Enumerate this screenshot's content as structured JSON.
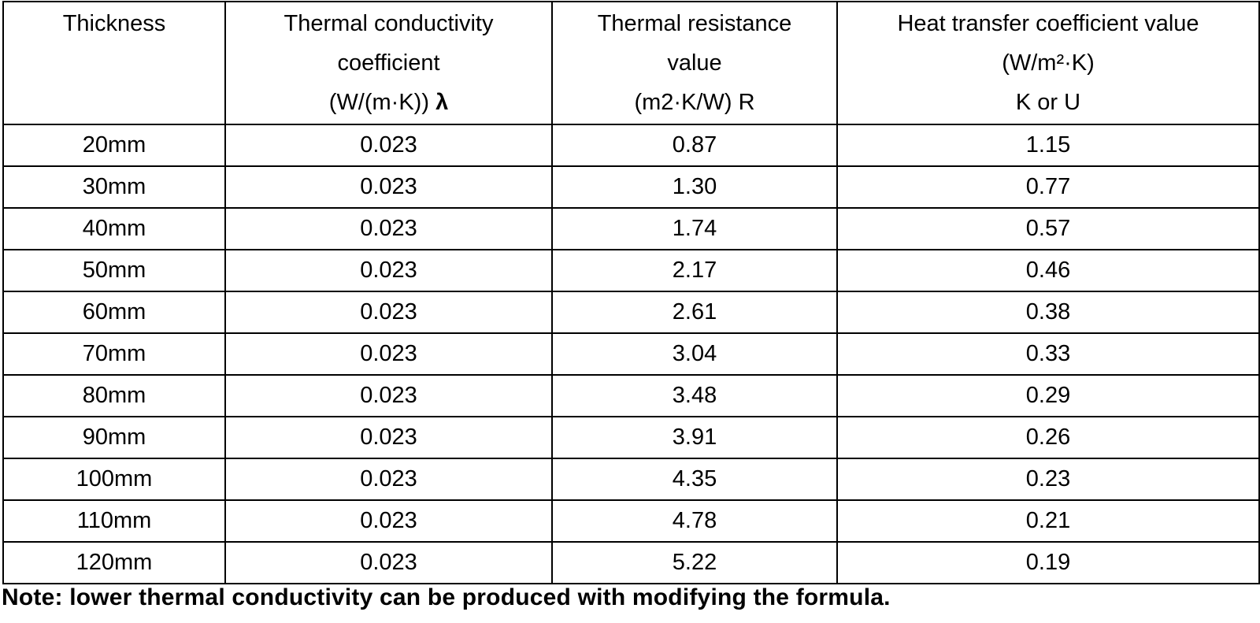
{
  "table": {
    "headers": [
      {
        "lines": [
          "Thickness"
        ]
      },
      {
        "lines": [
          "Thermal conductivity",
          "coefficient",
          "(W/(m·K))"
        ],
        "symbol": "λ"
      },
      {
        "lines": [
          "Thermal resistance",
          "value",
          "(m2·K/W) R"
        ]
      },
      {
        "lines": [
          "Heat transfer coefficient value",
          "(W/m²·K)",
          "K or U"
        ]
      }
    ],
    "rows": [
      [
        "20mm",
        "0.023",
        "0.87",
        "1.15"
      ],
      [
        "30mm",
        "0.023",
        "1.30",
        "0.77"
      ],
      [
        "40mm",
        "0.023",
        "1.74",
        "0.57"
      ],
      [
        "50mm",
        "0.023",
        "2.17",
        "0.46"
      ],
      [
        "60mm",
        "0.023",
        "2.61",
        "0.38"
      ],
      [
        "70mm",
        "0.023",
        "3.04",
        "0.33"
      ],
      [
        "80mm",
        "0.023",
        "3.48",
        "0.29"
      ],
      [
        "90mm",
        "0.023",
        "3.91",
        "0.26"
      ],
      [
        "100mm",
        "0.023",
        "4.35",
        "0.23"
      ],
      [
        "110mm",
        "0.023",
        "4.78",
        "0.21"
      ],
      [
        "120mm",
        "0.023",
        "5.22",
        "0.19"
      ]
    ]
  },
  "note": "Note: lower thermal conductivity can be produced with modifying the formula."
}
